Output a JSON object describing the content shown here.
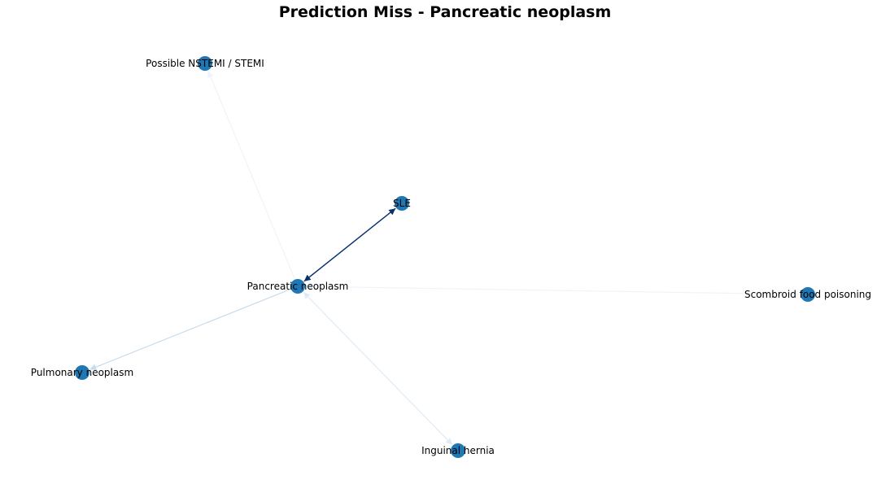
{
  "title": "Prediction Miss - Pancreatic neoplasm",
  "colors": {
    "node": "#1f77b4",
    "edge_strong": "#08306b",
    "edge_light": "#c6dbef",
    "edge_faint": "#deebf7",
    "edge_very_faint": "#eef4fb"
  },
  "nodes": [
    {
      "id": "pancreatic",
      "label": "Pancreatic neoplasm"
    },
    {
      "id": "sle",
      "label": "SLE"
    },
    {
      "id": "nstemi",
      "label": "Possible NSTEMI / STEMI"
    },
    {
      "id": "scombroid",
      "label": "Scombroid food poisoning"
    },
    {
      "id": "pulmonary",
      "label": "Pulmonary neoplasm"
    },
    {
      "id": "inguinal",
      "label": "Inguinal hernia"
    }
  ],
  "edges": [
    {
      "source": "pancreatic",
      "target": "sle",
      "bidirectional": true,
      "strength": "strong"
    },
    {
      "source": "pancreatic",
      "target": "pulmonary",
      "bidirectional": false,
      "strength": "light"
    },
    {
      "source": "pancreatic",
      "target": "inguinal",
      "bidirectional": true,
      "strength": "faint"
    },
    {
      "source": "pancreatic",
      "target": "nstemi",
      "bidirectional": false,
      "strength": "very_faint"
    },
    {
      "source": "scombroid",
      "target": "pancreatic",
      "bidirectional": false,
      "strength": "very_faint"
    }
  ]
}
